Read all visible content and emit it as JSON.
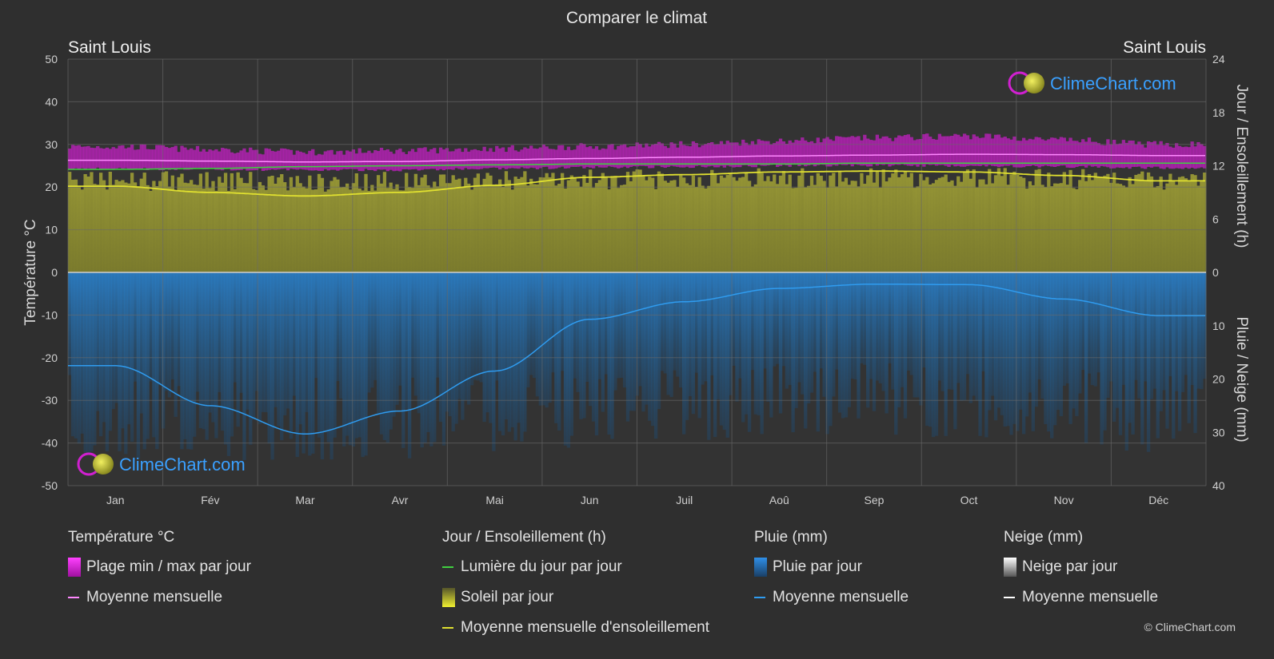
{
  "title": "Comparer le climat",
  "city_left": "Saint Louis",
  "city_right": "Saint Louis",
  "logo_text": "ClimeChart.com",
  "copyright": "© ClimeChart.com",
  "colors": {
    "background": "#2f2f2f",
    "temp_range": "#d020d0",
    "temp_mean": "#ff88ff",
    "daylight": "#40d040",
    "sun_fill": "#8a8a30",
    "sun_mean": "#e0e030",
    "rain_fill": "#1f5f96",
    "rain_mean": "#2f9cf0",
    "snow_mean": "#ffffff"
  },
  "chart_data": {
    "type": "area",
    "title": "Comparer le climat",
    "categories": [
      "Jan",
      "Fév",
      "Mar",
      "Avr",
      "Mai",
      "Jun",
      "Juil",
      "Aoû",
      "Sep",
      "Oct",
      "Nov",
      "Déc"
    ],
    "left_axis": {
      "label": "Température °C",
      "ticks": [
        50,
        40,
        30,
        20,
        10,
        0,
        -10,
        -20,
        -30,
        -40,
        -50
      ],
      "range": [
        -50,
        50
      ]
    },
    "right_axis_top": {
      "label": "Jour / Ensoleillement (h)",
      "ticks": [
        24,
        18,
        12,
        6,
        0
      ],
      "range": [
        0,
        24
      ]
    },
    "right_axis_bottom": {
      "label": "Pluie / Neige (mm)",
      "ticks": [
        0,
        10,
        20,
        30,
        40
      ],
      "range": [
        0,
        40
      ]
    },
    "grid": true,
    "series": [
      {
        "name": "Plage min / max par jour",
        "kind": "band",
        "axis": "temperature",
        "min": [
          24.3,
          24.2,
          24.0,
          24.0,
          24.3,
          24.6,
          24.8,
          25.0,
          25.1,
          25.0,
          24.8,
          24.5
        ],
        "max": [
          29.5,
          28.8,
          28.2,
          28.5,
          29.0,
          29.5,
          30.0,
          30.8,
          31.5,
          32.0,
          31.0,
          30.0
        ]
      },
      {
        "name": "Moyenne mensuelle",
        "kind": "line",
        "axis": "temperature",
        "values": [
          26.3,
          26.1,
          25.9,
          26.0,
          26.4,
          26.7,
          27.0,
          27.3,
          27.5,
          27.7,
          27.6,
          27.4
        ]
      },
      {
        "name": "Lumière du jour par jour",
        "kind": "line",
        "axis": "hours",
        "values": [
          11.6,
          11.7,
          11.9,
          12.0,
          12.1,
          12.2,
          12.2,
          12.2,
          12.3,
          12.3,
          12.3,
          12.3
        ]
      },
      {
        "name": "Soleil par jour",
        "kind": "area",
        "axis": "hours",
        "values": [
          11.5,
          11.4,
          11.3,
          11.4,
          11.5,
          11.6,
          11.7,
          11.8,
          11.8,
          11.8,
          11.7,
          11.6
        ]
      },
      {
        "name": "Moyenne mensuelle d'ensoleillement",
        "kind": "line",
        "axis": "hours",
        "values": [
          9.7,
          9.0,
          8.6,
          9.0,
          9.8,
          10.7,
          11.0,
          11.3,
          11.4,
          11.3,
          10.9,
          10.3
        ]
      },
      {
        "name": "Pluie par jour",
        "kind": "bars",
        "axis": "precip",
        "values": [
          35,
          35,
          36,
          35,
          34,
          33,
          32,
          31,
          31,
          31,
          33,
          34
        ]
      },
      {
        "name": "Moyenne mensuelle",
        "kind": "line",
        "axis": "precip",
        "values": [
          17.5,
          25.0,
          30.3,
          26.0,
          18.5,
          8.8,
          5.5,
          3.0,
          2.2,
          2.3,
          5.0,
          8.1
        ]
      },
      {
        "name": "Neige par jour",
        "kind": "bars",
        "axis": "precip",
        "values": [
          0,
          0,
          0,
          0,
          0,
          0,
          0,
          0,
          0,
          0,
          0,
          0
        ]
      },
      {
        "name": "Moyenne mensuelle",
        "kind": "line",
        "axis": "precip",
        "values": [
          0,
          0,
          0,
          0,
          0,
          0,
          0,
          0,
          0,
          0,
          0,
          0
        ]
      }
    ]
  },
  "legend": {
    "temperature": {
      "title": "Température °C",
      "range_label": "Plage min / max par jour",
      "mean_label": "Moyenne mensuelle"
    },
    "sun": {
      "title": "Jour / Ensoleillement (h)",
      "daylight_label": "Lumière du jour par jour",
      "sun_label": "Soleil par jour",
      "mean_label": "Moyenne mensuelle d'ensoleillement"
    },
    "rain": {
      "title": "Pluie (mm)",
      "rain_label": "Pluie par jour",
      "mean_label": "Moyenne mensuelle"
    },
    "snow": {
      "title": "Neige (mm)",
      "snow_label": "Neige par jour",
      "mean_label": "Moyenne mensuelle"
    }
  }
}
